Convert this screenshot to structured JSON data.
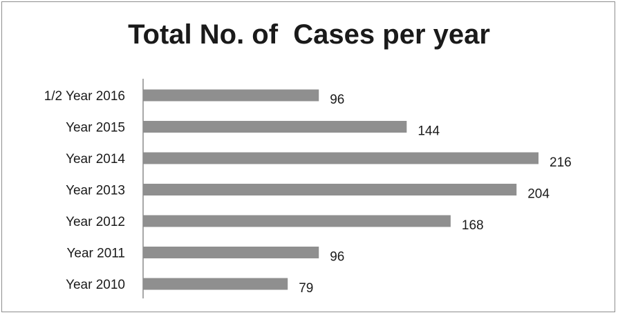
{
  "chart_data": {
    "type": "bar",
    "orientation": "horizontal",
    "title": "Total No. of  Cases per year",
    "categories": [
      "1/2 Year 2016",
      "Year 2015",
      "Year 2014",
      "Year 2013",
      "Year 2012",
      "Year 2011",
      "Year 2010"
    ],
    "values": [
      96,
      144,
      216,
      204,
      168,
      96,
      79
    ],
    "xlabel": "",
    "ylabel": "",
    "grid": false,
    "legend": false,
    "data_labels": true,
    "colors": {
      "bar": "#8f8f8f",
      "axis": "#8c8c8c",
      "text": "#1a1a1a"
    }
  }
}
